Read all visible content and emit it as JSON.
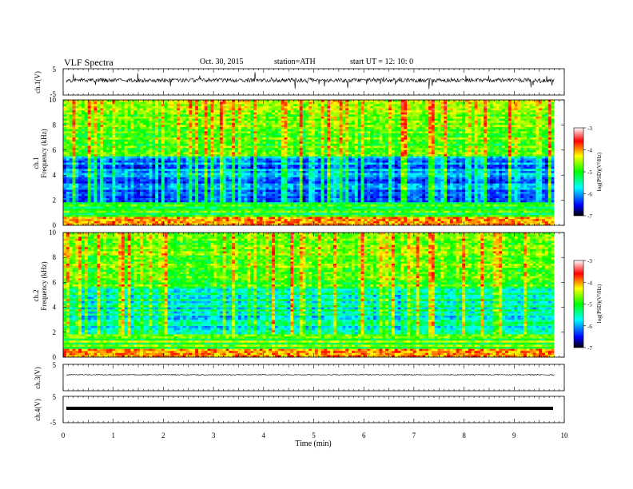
{
  "header": {
    "title": "VLF Spectra",
    "date": "Oct. 30, 2015",
    "station": "station=ATH",
    "start": "start  UT =   12: 10: 0"
  },
  "xaxis": {
    "label": "Time  (min)",
    "ticks": [
      "0",
      "1",
      "2",
      "3",
      "4",
      "5",
      "6",
      "7",
      "8",
      "9",
      "10"
    ]
  },
  "panels": {
    "ch1_wave": {
      "ylabel": "ch.1(V)",
      "ticks": [
        "5",
        "-5"
      ]
    },
    "ch1_spec": {
      "ylabel_top": "ch.1",
      "ylabel": "Frequency  (kHz)",
      "ticks": [
        "10",
        "8",
        "6",
        "4",
        "2",
        "0"
      ]
    },
    "ch2_spec": {
      "ylabel_top": "ch.2",
      "ylabel": "Frequency  (kHz)",
      "ticks": [
        "10",
        "8",
        "6",
        "4",
        "2",
        "0"
      ]
    },
    "ch3_wave": {
      "ylabel": "ch.3(V)",
      "ticks": [
        "5"
      ]
    },
    "ch4_wave": {
      "ylabel": "ch.4(V)",
      "ticks": [
        "5",
        "-5"
      ]
    }
  },
  "colorbar": {
    "label": "log(PSD)(V²/Hz)",
    "ticks": [
      "-3",
      "-4",
      "-5",
      "-6",
      "-7"
    ],
    "colors": [
      "#ffffff",
      "#ff0000",
      "#ffff00",
      "#00ff00",
      "#00ffff",
      "#0000ff",
      "#000000"
    ]
  },
  "chart_data": {
    "type": "heatmap",
    "title": "VLF Spectra",
    "xlabel": "Time  (min)",
    "xlim": [
      0,
      10
    ],
    "data_extent_min": 9.8,
    "ylim_spec": [
      0,
      10
    ],
    "ylim_wave": [
      -5,
      5
    ],
    "color_range": [
      -7,
      -3
    ],
    "series": [
      {
        "name": "ch.1",
        "ylabel": "Frequency  (kHz)"
      },
      {
        "name": "ch.2",
        "ylabel": "Frequency  (kHz)"
      }
    ]
  }
}
